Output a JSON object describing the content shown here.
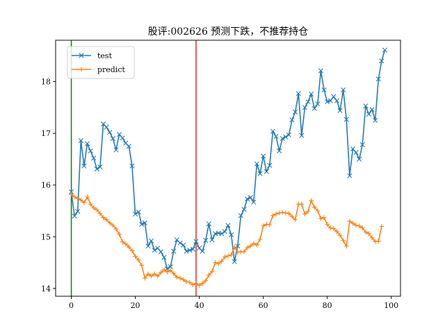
{
  "chart_data": {
    "type": "line",
    "title": "股评:002626 预测下跌，不推荐持仓",
    "xlabel": "",
    "ylabel": "",
    "xlim": [
      -4.9,
      102.9
    ],
    "ylim": [
      13.85,
      18.8
    ],
    "xticks": [
      0,
      20,
      40,
      60,
      80,
      100
    ],
    "yticks": [
      14,
      15,
      16,
      17,
      18
    ],
    "grid": false,
    "legend_position": "upper-left",
    "vlines": [
      {
        "x": 0,
        "color": "#008000"
      },
      {
        "x": 39,
        "color": "#d62728"
      }
    ],
    "series": [
      {
        "name": "test",
        "color": "#1f77b4",
        "marker": "x",
        "values": [
          15.87,
          15.4,
          15.49,
          16.86,
          16.37,
          16.8,
          16.66,
          16.52,
          16.31,
          16.35,
          17.18,
          17.12,
          17.02,
          16.9,
          16.68,
          16.98,
          16.91,
          16.81,
          16.75,
          16.37,
          15.44,
          15.48,
          15.24,
          15.27,
          14.82,
          14.92,
          14.74,
          14.78,
          14.71,
          14.6,
          14.38,
          14.42,
          14.72,
          14.94,
          14.88,
          14.84,
          14.72,
          14.74,
          14.76,
          14.91,
          14.78,
          14.72,
          14.93,
          15.25,
          14.94,
          15.06,
          15.07,
          15.06,
          15.1,
          15.22,
          15.04,
          14.52,
          14.82,
          15.41,
          15.53,
          15.73,
          15.76,
          15.67,
          16.41,
          16.22,
          16.56,
          16.26,
          16.38,
          17.04,
          16.94,
          16.66,
          16.9,
          16.93,
          16.97,
          17.26,
          17.41,
          17.77,
          16.96,
          17.5,
          17.61,
          17.76,
          17.48,
          17.57,
          18.21,
          17.84,
          17.61,
          17.63,
          17.71,
          17.63,
          17.44,
          17.84,
          17.27,
          16.18,
          16.7,
          16.63,
          16.5,
          16.78,
          17.53,
          17.37,
          17.46,
          17.25,
          18.05,
          18.4,
          18.61
        ]
      },
      {
        "name": "predict",
        "color": "#ff7f0e",
        "marker": "+",
        "values": [
          15.82,
          15.77,
          15.74,
          15.71,
          15.66,
          15.77,
          15.63,
          15.56,
          15.52,
          15.45,
          15.37,
          15.33,
          15.27,
          15.22,
          15.15,
          15.05,
          14.9,
          14.86,
          14.8,
          14.73,
          14.62,
          14.55,
          14.45,
          14.2,
          14.28,
          14.24,
          14.28,
          14.24,
          14.31,
          14.36,
          14.32,
          14.35,
          14.29,
          14.22,
          14.2,
          14.17,
          14.13,
          14.12,
          14.07,
          14.1,
          14.06,
          14.1,
          14.15,
          14.26,
          14.33,
          14.5,
          14.48,
          14.53,
          14.61,
          14.63,
          14.65,
          14.8,
          14.7,
          14.71,
          14.71,
          14.79,
          14.82,
          14.87,
          14.84,
          14.95,
          15.21,
          15.24,
          15.23,
          15.41,
          15.44,
          15.46,
          15.47,
          15.46,
          15.45,
          15.39,
          15.33,
          15.63,
          15.63,
          15.44,
          15.49,
          15.7,
          15.57,
          15.5,
          15.35,
          15.37,
          15.24,
          15.17,
          15.16,
          15.1,
          15.03,
          14.93,
          14.82,
          15.3,
          15.26,
          15.22,
          15.21,
          15.17,
          15.09,
          15.06,
          14.98,
          14.91,
          14.91,
          15.2
        ]
      }
    ]
  }
}
